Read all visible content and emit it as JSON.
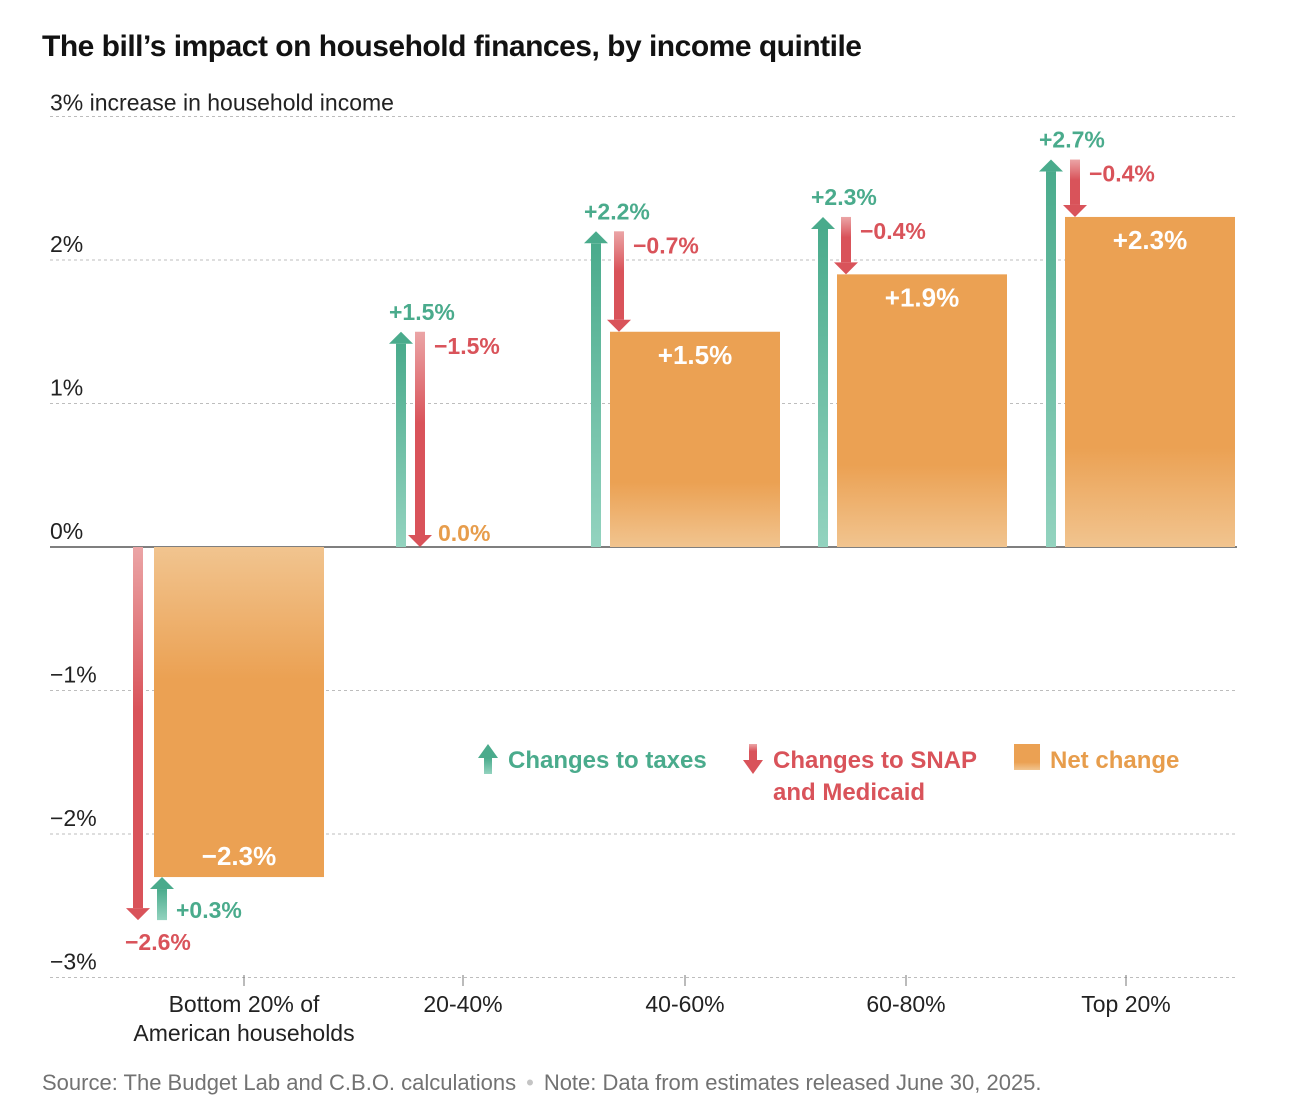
{
  "title": "The bill’s impact on household finances, by income quintile",
  "chart_data": {
    "type": "bar",
    "title": "The bill’s impact on household finances, by income quintile",
    "ylabel": "3% increase in household income",
    "ylim": [
      -3,
      3
    ],
    "yticks": [
      {
        "value": 3,
        "label": "3% increase in household income"
      },
      {
        "value": 2,
        "label": "2%"
      },
      {
        "value": 1,
        "label": "1%"
      },
      {
        "value": 0,
        "label": "0%"
      },
      {
        "value": -1,
        "label": "−1%"
      },
      {
        "value": -2,
        "label": "−2%"
      },
      {
        "value": -3,
        "label": "−3%"
      }
    ],
    "categories": [
      [
        "Bottom 20% of",
        "American households"
      ],
      [
        "20-40%"
      ],
      [
        "40-60%"
      ],
      [
        "60-80%"
      ],
      [
        "Top 20%"
      ]
    ],
    "series": [
      {
        "name": "Changes to taxes",
        "values": [
          0.3,
          1.5,
          2.2,
          2.3,
          2.7
        ],
        "labels": [
          "+0.3%",
          "+1.5%",
          "+2.2%",
          "+2.3%",
          "+2.7%"
        ]
      },
      {
        "name": "Changes to SNAP and Medicaid",
        "values": [
          -2.6,
          -1.5,
          -0.7,
          -0.4,
          -0.4
        ],
        "labels": [
          "−2.6%",
          "−1.5%",
          "−0.7%",
          "−0.4%",
          "−0.4%"
        ]
      },
      {
        "name": "Net change",
        "values": [
          -2.3,
          0.0,
          1.5,
          1.9,
          2.3
        ],
        "labels": [
          "−2.3%",
          "0.0%",
          "+1.5%",
          "+1.9%",
          "+2.3%"
        ]
      }
    ],
    "legend": [
      {
        "key": "taxes",
        "lines": [
          "Changes to taxes"
        ]
      },
      {
        "key": "snap",
        "lines": [
          "Changes to SNAP",
          "and Medicaid"
        ]
      },
      {
        "key": "net",
        "lines": [
          "Net change"
        ]
      }
    ],
    "colors": {
      "taxes": "#4aab8c",
      "taxes_light": "#93d3bf",
      "snap": "#d9535a",
      "snap_light": "#eba5a6",
      "net": "#eba153",
      "net_light": "#f1c48f",
      "net_label": "#e79d4c",
      "grid": "#bdbdbd",
      "axis": "#555555"
    }
  },
  "footer": {
    "source": "Source: The Budget Lab and C.B.O. calculations",
    "separator": "•",
    "note": "Note: Data from estimates released June 30, 2025."
  }
}
